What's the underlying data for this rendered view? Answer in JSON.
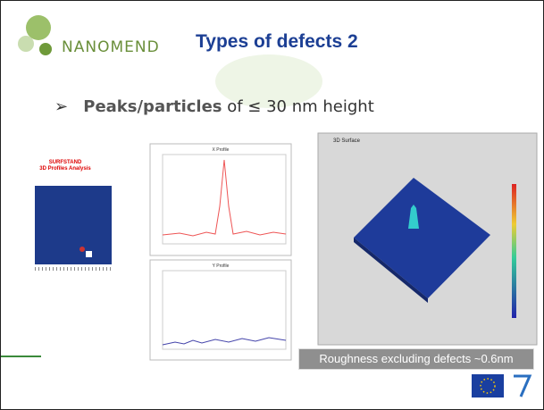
{
  "header": {
    "logo": "NANOMEND",
    "title": "Types of defects 2"
  },
  "bullet": {
    "bold": "Peaks/particles",
    "rest": "of ≤ 30 nm height"
  },
  "figures": {
    "left_title": "SURFSTAND",
    "left_subtitle": "3D Profiles Analysis",
    "x_profile": "X Profile",
    "y_profile": "Y Profile",
    "surface": "3D Surface"
  },
  "caption": "Roughness excluding defects ~0.6nm"
}
